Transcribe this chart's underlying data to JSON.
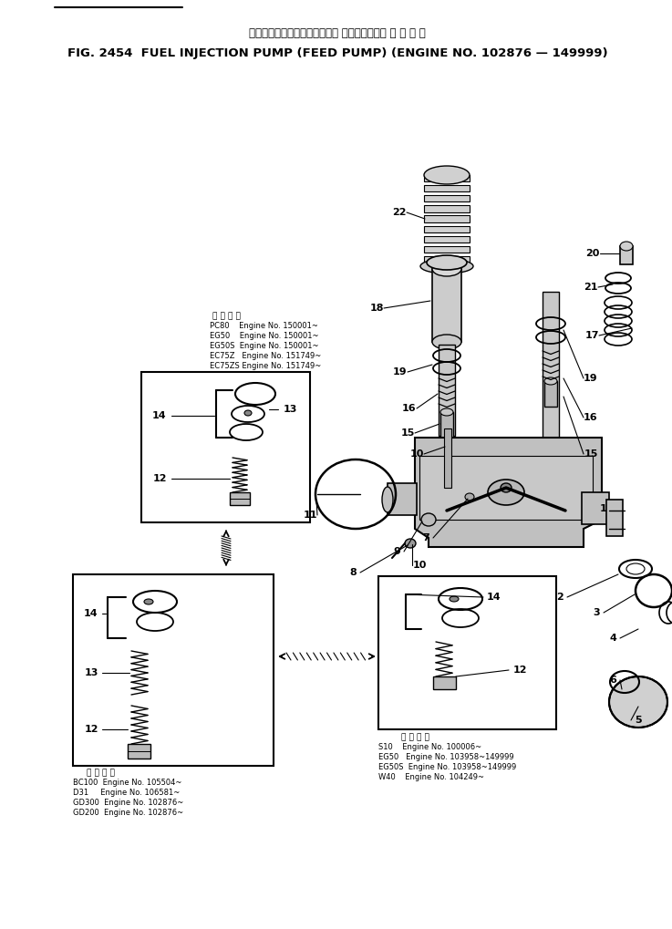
{
  "bg_color": "#ffffff",
  "title_ja": "フェルインジェクションポンプ フィードポンプ 適 用 号 機",
  "title_en": "FIG. 2454  FUEL INJECTION PUMP (FEED PUMP) (ENGINE NO. 102876 — 149999)",
  "upper_text_header": "適 用 号 機",
  "upper_text_lines": [
    "PC80    Engine No. 150001~",
    "EG50    Engine No. 150001~",
    "EG50S  Engine No. 150001~",
    "EC75Z   Engine No. 151749~",
    "EC75ZS Engine No. 151749~"
  ],
  "lower_center_text_header": "適 用 号 機",
  "lower_center_text_lines": [
    "S10    Engine No. 100006~",
    "EG50   Engine No. 103958~149999",
    "EG50S  Engine No. 103958~149999",
    "W40    Engine No. 104249~"
  ],
  "lower_left_text_header": "適 用 号 機",
  "lower_left_text_lines": [
    "BC100  Engine No. 105504~",
    "D31     Engine No. 106581~",
    "GD300  Engine No. 102876~",
    "GD200  Engine No. 102876~"
  ]
}
